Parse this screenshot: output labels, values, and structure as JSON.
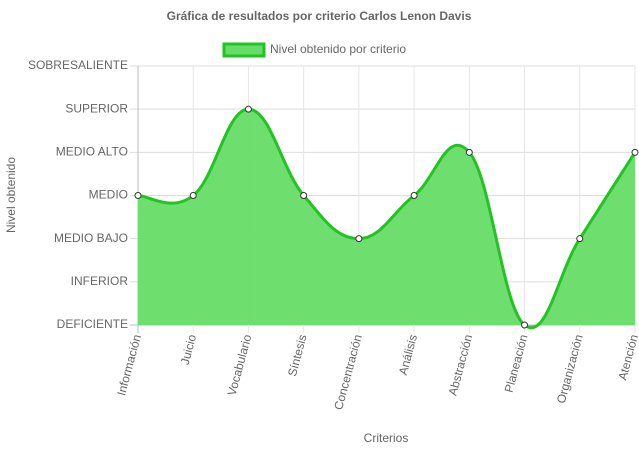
{
  "chart_data": {
    "type": "line",
    "title": "Gráfica de resultados por criterio Carlos Lenon Davis",
    "xlabel": "Criterios",
    "ylabel": "Nivel obtenido",
    "categories": [
      "Información",
      "Juicio",
      "Vocabulario",
      "Síntesis",
      "Concentración",
      "Análisis",
      "Abstracción",
      "Planeación",
      "Organización",
      "Atención"
    ],
    "series": [
      {
        "name": "Nivel obtenido por criterio",
        "color": "#22c322",
        "fill": "#66dd66",
        "values": [
          3,
          3,
          5,
          3,
          2,
          3,
          4,
          0,
          2,
          4
        ]
      }
    ],
    "ylim": [
      0,
      6
    ],
    "yticks": [
      {
        "value": 0,
        "label": "DEFICIENTE"
      },
      {
        "value": 1,
        "label": "INFERIOR"
      },
      {
        "value": 2,
        "label": "MEDIO BAJO"
      },
      {
        "value": 3,
        "label": "MEDIO"
      },
      {
        "value": 4,
        "label": "MEDIO ALTO"
      },
      {
        "value": 5,
        "label": "SUPERIOR"
      },
      {
        "value": 6,
        "label": "SOBRESALIENTE"
      }
    ],
    "grid": true,
    "legend": "top"
  }
}
